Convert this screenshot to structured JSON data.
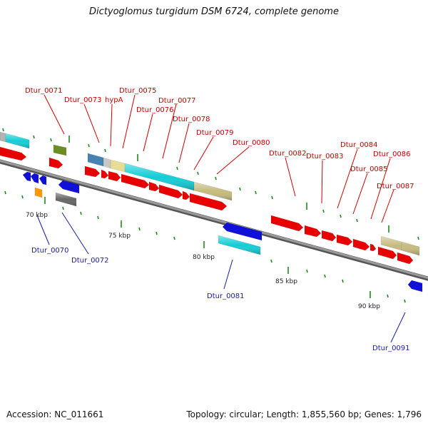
{
  "header": {
    "title": "Dictyoglomus turgidum DSM 6724, complete genome"
  },
  "footer": {
    "accession": "Accession: NC_011661",
    "summary": "Topology: circular; Length: 1,855,560 bp; Genes: 1,796"
  },
  "colors": {
    "backbone": "#8c8c8c",
    "cds": "#e80000",
    "blue_gene": "#1010d8",
    "cyan_gene": "#14cdd6",
    "khaki_gene": "#c6bb7d",
    "olive_gene": "#6b8e23",
    "steel_gene": "#4682b4",
    "tick": "#1d8a1d",
    "label_top": "#cc0000",
    "label_bottom": "#1a1aa6"
  },
  "scale_labels": [
    "70 kbp",
    "75 kbp",
    "80 kbp",
    "85 kbp",
    "90 kbp"
  ],
  "gene_labels_top": [
    "Dtur_0071",
    "Dtur_0073",
    "hypA",
    "Dtur_0075",
    "Dtur_0076",
    "Dtur_0077",
    "Dtur_0078",
    "Dtur_0079",
    "Dtur_0080",
    "Dtur_0082",
    "Dtur_0083",
    "Dtur_0084",
    "Dtur_0085",
    "Dtur_0086",
    "Dtur_0087"
  ],
  "gene_labels_bottom": [
    "Dtur_0070",
    "Dtur_0072",
    "Dtur_0081",
    "Dtur_0091"
  ]
}
